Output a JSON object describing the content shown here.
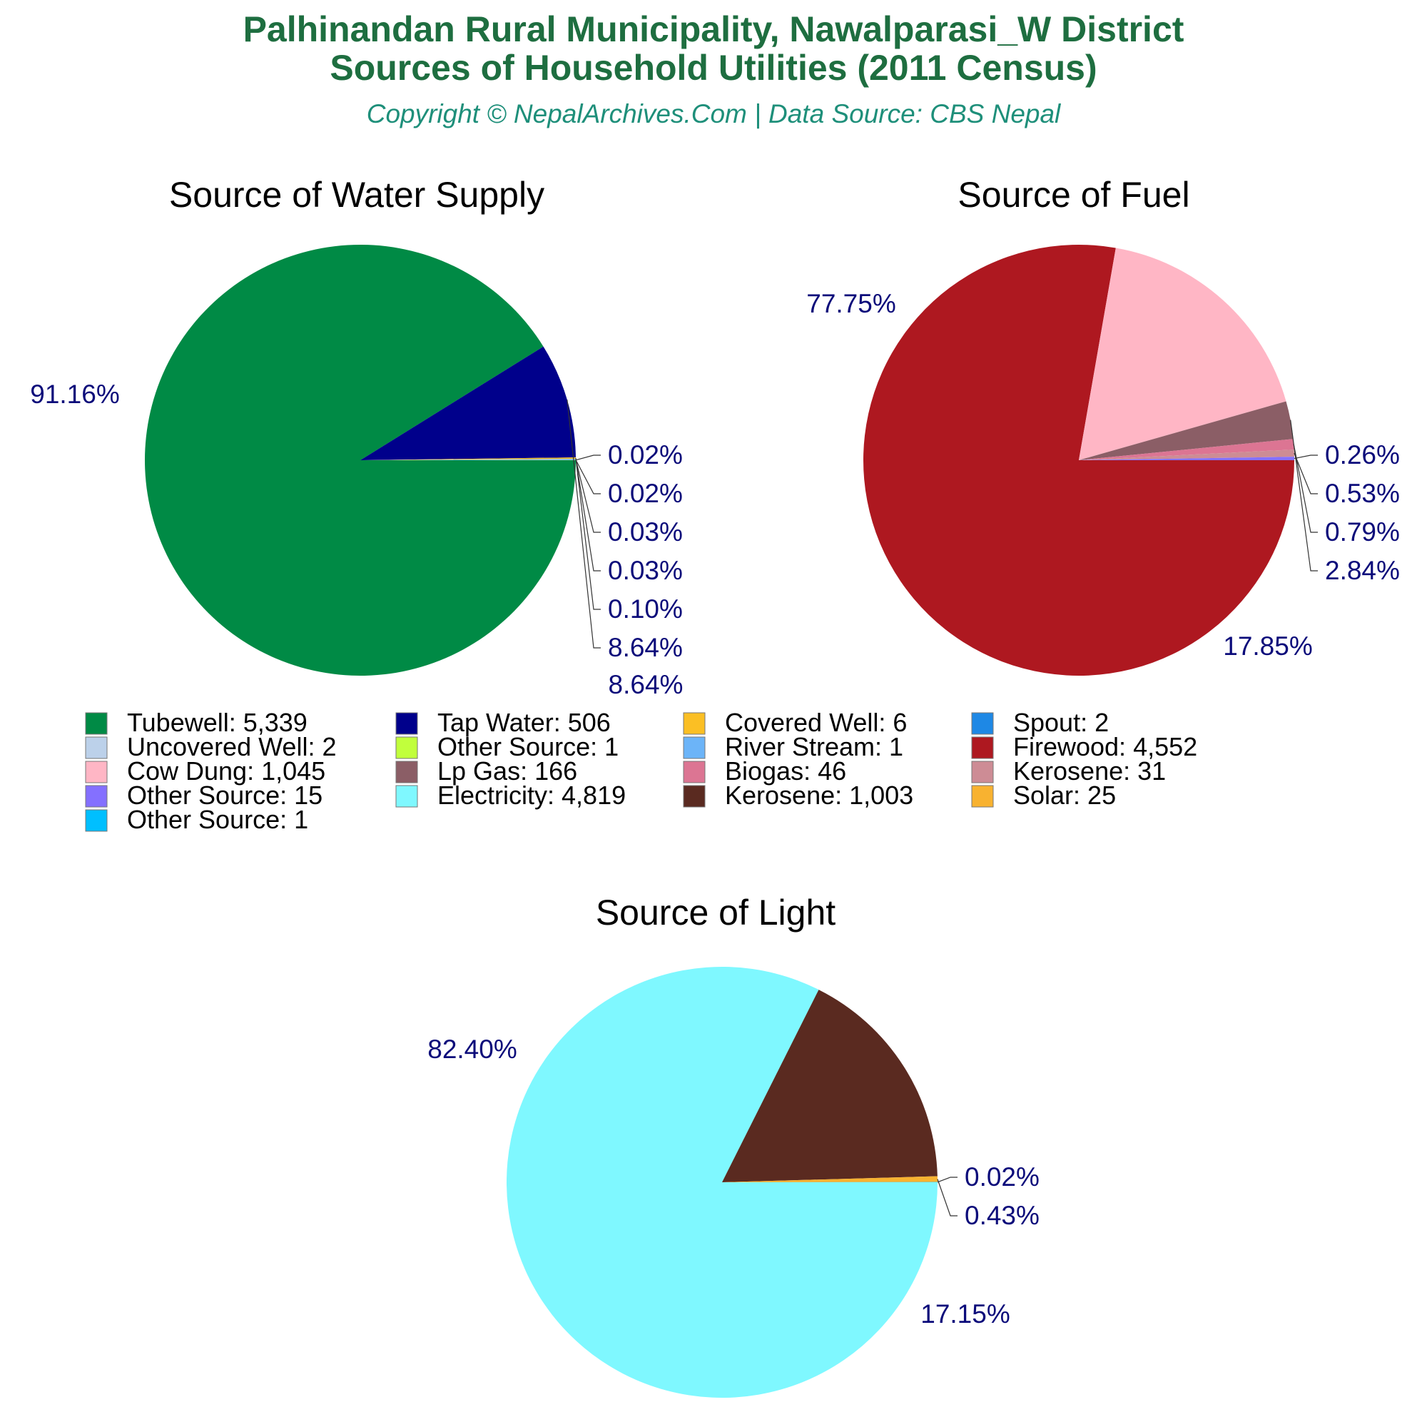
{
  "header": {
    "title_line1": "Palhinandan Rural Municipality, Nawalparasi_W District",
    "title_line2": "Sources of Household Utilities (2011 Census)",
    "subtitle": "Copyright © NepalArchives.Com | Data Source: CBS Nepal"
  },
  "chart_data": [
    {
      "type": "pie",
      "title": "Source of Water Supply",
      "slices": [
        {
          "label": "Tubewell",
          "value": 5339,
          "color": "#008a45",
          "pct": "91.16%"
        },
        {
          "label": "Tap Water",
          "value": 506,
          "color": "#00008b",
          "pct": "8.64%"
        },
        {
          "label": "Covered Well",
          "value": 6,
          "color": "#fbbf24",
          "pct": "0.10%"
        },
        {
          "label": "Spout",
          "value": 2,
          "color": "#1e88e5",
          "pct": "0.03%"
        },
        {
          "label": "Uncovered Well",
          "value": 2,
          "color": "#bcd1ea",
          "pct": "0.03%"
        },
        {
          "label": "Other Source",
          "value": 1,
          "color": "#c1ff3c",
          "pct": "0.02%"
        },
        {
          "label": "River Stream",
          "value": 1,
          "color": "#6cb4f8",
          "pct": "0.02%"
        }
      ]
    },
    {
      "type": "pie",
      "title": "Source of Fuel",
      "slices": [
        {
          "label": "Firewood",
          "value": 4552,
          "color": "#ae1820",
          "pct": "77.75%"
        },
        {
          "label": "Cow Dung",
          "value": 1045,
          "color": "#ffb6c5",
          "pct": "17.85%"
        },
        {
          "label": "Lp Gas",
          "value": 166,
          "color": "#8b5e66",
          "pct": "2.84%"
        },
        {
          "label": "Biogas",
          "value": 46,
          "color": "#dc7593",
          "pct": "0.79%"
        },
        {
          "label": "Kerosene",
          "value": 31,
          "color": "#cd8c95",
          "pct": "0.53%"
        },
        {
          "label": "Other Source",
          "value": 15,
          "color": "#8470ff",
          "pct": "0.26%"
        }
      ]
    },
    {
      "type": "pie",
      "title": "Source of Light",
      "slices": [
        {
          "label": "Electricity",
          "value": 4819,
          "color": "#7ff8ff",
          "pct": "82.40%"
        },
        {
          "label": "Kerosene",
          "value": 1003,
          "color": "#5a2a20",
          "pct": "17.15%"
        },
        {
          "label": "Solar",
          "value": 25,
          "color": "#f8b230",
          "pct": "0.43%"
        },
        {
          "label": "Other Source",
          "value": 1,
          "color": "#00bfff",
          "pct": "0.02%"
        }
      ]
    }
  ],
  "legend": [
    {
      "text": "Tubewell: 5,339",
      "color": "#008a45"
    },
    {
      "text": "Tap Water: 506",
      "color": "#00008b"
    },
    {
      "text": "Covered Well: 6",
      "color": "#fbbf24"
    },
    {
      "text": "Spout: 2",
      "color": "#1e88e5"
    },
    {
      "text": "Uncovered Well: 2",
      "color": "#bcd1ea"
    },
    {
      "text": "Other Source: 1",
      "color": "#c1ff3c"
    },
    {
      "text": "River Stream: 1",
      "color": "#6cb4f8"
    },
    {
      "text": "Firewood: 4,552",
      "color": "#ae1820"
    },
    {
      "text": "Cow Dung: 1,045",
      "color": "#ffb6c5"
    },
    {
      "text": "Lp Gas: 166",
      "color": "#8b5e66"
    },
    {
      "text": "Biogas: 46",
      "color": "#dc7593"
    },
    {
      "text": "Kerosene: 31",
      "color": "#cd8c95"
    },
    {
      "text": "Other Source: 15",
      "color": "#8470ff"
    },
    {
      "text": "Electricity: 4,819",
      "color": "#7ff8ff"
    },
    {
      "text": "Kerosene: 1,003",
      "color": "#5a2a20"
    },
    {
      "text": "Solar: 25",
      "color": "#f8b230"
    },
    {
      "text": "Other Source: 1",
      "color": "#00bfff"
    }
  ]
}
